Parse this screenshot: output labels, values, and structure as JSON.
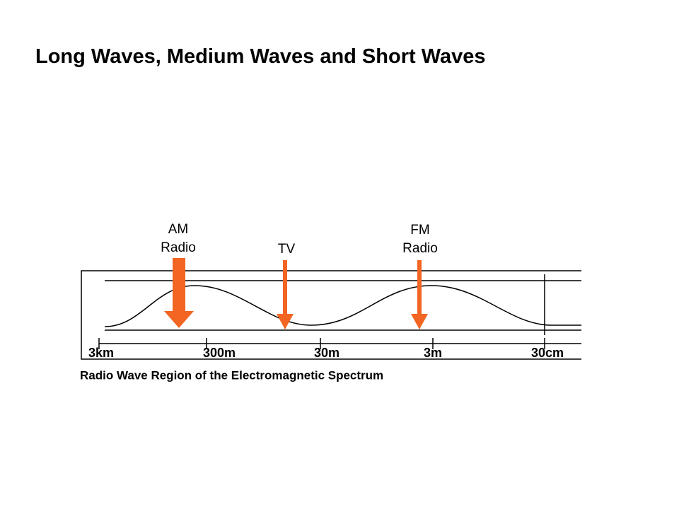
{
  "title": "Long Waves, Medium Waves and Short Waves",
  "arrows": [
    {
      "label": [
        "AM",
        "Radio"
      ]
    },
    {
      "label": [
        "TV"
      ]
    },
    {
      "label": [
        "FM",
        "Radio"
      ]
    }
  ],
  "scale": [
    "3km",
    "300m",
    "30m",
    "3m",
    "30cm"
  ],
  "caption": "Radio Wave Region of the Electromagnetic Spectrum"
}
